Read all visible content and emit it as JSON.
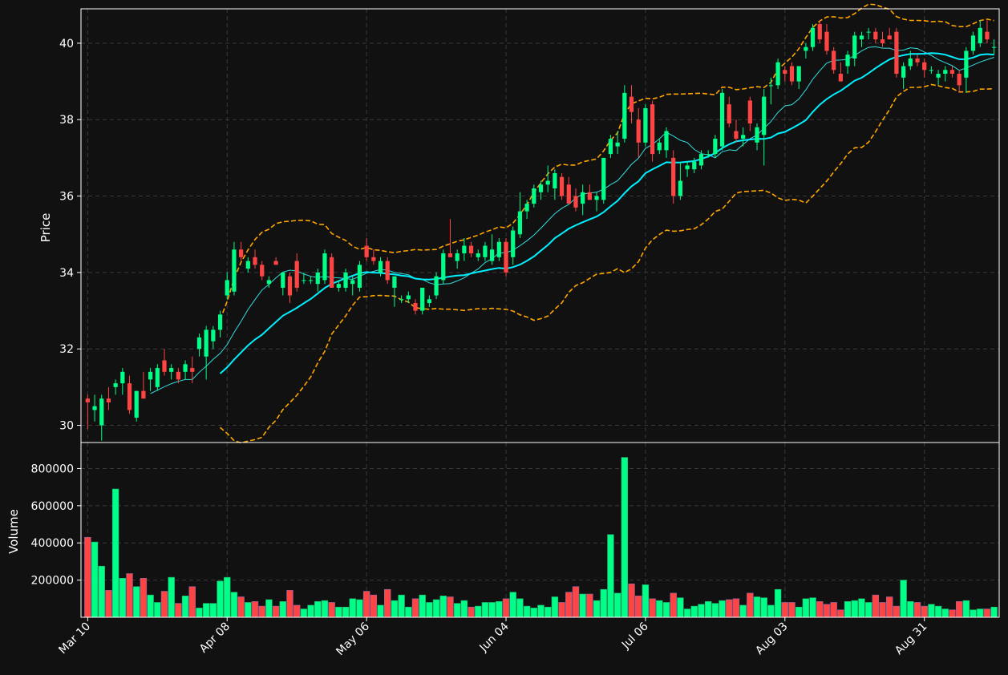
{
  "chart_data": {
    "type": "candlestick",
    "title": "",
    "colors": {
      "background": "#111111",
      "up": "#00ff88",
      "down": "#ff4444",
      "ma_fast": "#33dddd",
      "ma_slow": "#00f0ff",
      "bands": "#ffa500",
      "grid": "#3a3a3a",
      "axis": "#ffffff"
    },
    "grid": true,
    "price_panel": {
      "ylabel": "Price",
      "ylim": [
        29.55,
        40.9
      ],
      "yticks": [
        30,
        32,
        34,
        36,
        38,
        40
      ]
    },
    "volume_panel": {
      "ylabel": "Volume",
      "ylim": [
        0,
        940000
      ],
      "yticks": [
        200000,
        400000,
        600000,
        800000
      ]
    },
    "x_tick_labels": [
      {
        "index": 0,
        "label": "Mar 10"
      },
      {
        "index": 20,
        "label": "Apr 08"
      },
      {
        "index": 40,
        "label": "May 06"
      },
      {
        "index": 60,
        "label": "Jun 04"
      },
      {
        "index": 80,
        "label": "Jul 06"
      },
      {
        "index": 100,
        "label": "Aug 03"
      },
      {
        "index": 120,
        "label": "Aug 31"
      }
    ],
    "candles": [
      [
        30.7,
        30.8,
        29.9,
        30.6,
        430000
      ],
      [
        30.4,
        30.8,
        30.1,
        30.5,
        405000
      ],
      [
        30.0,
        30.8,
        29.6,
        30.7,
        275000
      ],
      [
        30.7,
        31.0,
        30.4,
        30.6,
        145000
      ],
      [
        31.0,
        31.2,
        30.8,
        31.1,
        690000
      ],
      [
        31.1,
        31.5,
        30.8,
        31.4,
        210000
      ],
      [
        31.1,
        31.3,
        30.3,
        30.4,
        235000
      ],
      [
        30.2,
        30.9,
        30.1,
        30.9,
        165000
      ],
      [
        30.9,
        31.4,
        30.7,
        30.7,
        210000
      ],
      [
        31.2,
        31.5,
        30.9,
        31.4,
        120000
      ],
      [
        31.0,
        31.6,
        30.9,
        31.5,
        80000
      ],
      [
        31.7,
        32.0,
        31.3,
        31.4,
        140000
      ],
      [
        31.4,
        31.6,
        31.2,
        31.5,
        215000
      ],
      [
        31.4,
        31.5,
        31.1,
        31.2,
        75000
      ],
      [
        31.4,
        31.7,
        31.2,
        31.6,
        115000
      ],
      [
        31.5,
        31.8,
        31.1,
        31.4,
        165000
      ],
      [
        32.0,
        32.4,
        31.8,
        32.3,
        50000
      ],
      [
        31.8,
        32.6,
        31.2,
        32.5,
        75000
      ],
      [
        32.2,
        32.6,
        32.0,
        32.5,
        75000
      ],
      [
        32.5,
        33.0,
        32.3,
        32.9,
        195000
      ],
      [
        33.4,
        34.0,
        33.3,
        33.8,
        215000
      ],
      [
        33.5,
        34.8,
        33.4,
        34.6,
        135000
      ],
      [
        34.6,
        34.8,
        34.3,
        34.4,
        110000
      ],
      [
        34.1,
        34.4,
        34.0,
        34.3,
        80000
      ],
      [
        34.4,
        34.6,
        34.1,
        34.2,
        85000
      ],
      [
        34.2,
        34.3,
        33.8,
        33.9,
        60000
      ],
      [
        33.7,
        33.9,
        33.6,
        33.8,
        95000
      ],
      [
        34.3,
        34.4,
        34.2,
        34.2,
        60000
      ],
      [
        33.6,
        34.0,
        33.4,
        34.0,
        85000
      ],
      [
        33.9,
        34.0,
        33.2,
        33.4,
        145000
      ],
      [
        34.3,
        34.5,
        33.5,
        33.6,
        65000
      ],
      [
        33.8,
        34.0,
        33.7,
        33.8,
        45000
      ],
      [
        33.8,
        33.9,
        33.7,
        33.8,
        65000
      ],
      [
        33.7,
        34.1,
        33.5,
        34.0,
        85000
      ],
      [
        33.8,
        34.6,
        33.7,
        34.5,
        90000
      ],
      [
        34.4,
        34.5,
        33.6,
        33.6,
        80000
      ],
      [
        33.6,
        33.8,
        33.5,
        33.7,
        55000
      ],
      [
        33.6,
        34.1,
        33.5,
        34.0,
        55000
      ],
      [
        33.7,
        33.9,
        33.4,
        33.8,
        100000
      ],
      [
        33.6,
        34.3,
        33.5,
        34.2,
        95000
      ],
      [
        34.7,
        34.9,
        34.3,
        34.4,
        140000
      ],
      [
        34.4,
        34.6,
        34.2,
        34.3,
        120000
      ],
      [
        34.0,
        34.4,
        33.9,
        34.3,
        65000
      ],
      [
        34.3,
        34.4,
        33.7,
        33.8,
        150000
      ],
      [
        33.6,
        33.9,
        33.1,
        33.9,
        90000
      ],
      [
        33.3,
        33.4,
        33.2,
        33.3,
        120000
      ],
      [
        33.3,
        33.5,
        33.2,
        33.4,
        55000
      ],
      [
        33.2,
        33.3,
        32.9,
        33.0,
        100000
      ],
      [
        33.0,
        33.6,
        32.9,
        33.6,
        120000
      ],
      [
        33.2,
        33.4,
        33.1,
        33.3,
        80000
      ],
      [
        33.4,
        34.0,
        33.3,
        33.9,
        95000
      ],
      [
        33.8,
        34.6,
        33.7,
        34.5,
        115000
      ],
      [
        34.5,
        35.4,
        34.4,
        34.4,
        110000
      ],
      [
        34.3,
        34.6,
        34.1,
        34.5,
        75000
      ],
      [
        34.5,
        34.9,
        34.3,
        34.7,
        90000
      ],
      [
        34.7,
        34.8,
        34.4,
        34.5,
        55000
      ],
      [
        34.4,
        34.6,
        34.3,
        34.5,
        60000
      ],
      [
        34.4,
        34.8,
        34.3,
        34.7,
        80000
      ],
      [
        34.3,
        35.0,
        34.2,
        34.6,
        80000
      ],
      [
        34.4,
        34.9,
        34.3,
        34.8,
        85000
      ],
      [
        34.8,
        34.9,
        33.9,
        34.0,
        100000
      ],
      [
        34.4,
        35.2,
        34.2,
        35.1,
        135000
      ],
      [
        35.0,
        36.1,
        34.9,
        35.6,
        100000
      ],
      [
        35.6,
        35.9,
        35.4,
        35.8,
        60000
      ],
      [
        35.8,
        36.3,
        35.7,
        36.2,
        50000
      ],
      [
        36.1,
        36.4,
        35.9,
        36.3,
        65000
      ],
      [
        36.3,
        36.8,
        36.1,
        36.4,
        55000
      ],
      [
        36.2,
        36.7,
        35.9,
        36.6,
        110000
      ],
      [
        36.5,
        36.6,
        35.9,
        36.0,
        80000
      ],
      [
        36.3,
        36.5,
        35.8,
        35.8,
        135000
      ],
      [
        36.0,
        36.2,
        35.6,
        35.7,
        165000
      ],
      [
        35.8,
        36.3,
        35.5,
        36.1,
        125000
      ],
      [
        36.1,
        36.3,
        35.9,
        35.9,
        125000
      ],
      [
        35.9,
        36.1,
        35.6,
        36.0,
        90000
      ],
      [
        35.9,
        37.0,
        35.8,
        37.0,
        150000
      ],
      [
        37.1,
        37.6,
        37.0,
        37.5,
        445000
      ],
      [
        37.3,
        37.7,
        37.1,
        37.4,
        130000
      ],
      [
        37.5,
        38.9,
        37.4,
        38.7,
        860000
      ],
      [
        38.6,
        38.9,
        37.9,
        38.2,
        180000
      ],
      [
        38.0,
        38.3,
        37.0,
        37.4,
        115000
      ],
      [
        37.4,
        38.4,
        37.3,
        38.3,
        175000
      ],
      [
        38.4,
        38.5,
        36.9,
        37.1,
        100000
      ],
      [
        37.2,
        37.5,
        37.1,
        37.4,
        90000
      ],
      [
        37.2,
        37.8,
        37.0,
        37.7,
        80000
      ],
      [
        37.0,
        37.2,
        35.8,
        36.0,
        130000
      ],
      [
        36.0,
        36.9,
        35.9,
        36.4,
        105000
      ],
      [
        36.7,
        36.9,
        36.5,
        36.8,
        45000
      ],
      [
        36.7,
        37.0,
        36.6,
        36.9,
        60000
      ],
      [
        36.8,
        37.2,
        36.7,
        37.1,
        70000
      ],
      [
        37.1,
        37.2,
        37.0,
        37.1,
        85000
      ],
      [
        37.1,
        37.6,
        37.0,
        37.5,
        75000
      ],
      [
        37.3,
        38.8,
        37.2,
        38.7,
        90000
      ],
      [
        38.4,
        38.6,
        37.8,
        37.9,
        95000
      ],
      [
        37.7,
        38.0,
        37.4,
        37.5,
        100000
      ],
      [
        37.5,
        37.8,
        37.3,
        37.6,
        65000
      ],
      [
        38.5,
        38.6,
        37.7,
        37.9,
        130000
      ],
      [
        37.4,
        37.9,
        37.2,
        37.8,
        110000
      ],
      [
        37.6,
        38.8,
        36.8,
        38.6,
        105000
      ],
      [
        38.9,
        39.1,
        38.4,
        38.9,
        65000
      ],
      [
        38.9,
        39.6,
        38.8,
        39.5,
        150000
      ],
      [
        39.3,
        39.4,
        39.0,
        39.2,
        80000
      ],
      [
        39.4,
        39.5,
        38.9,
        39.0,
        80000
      ],
      [
        39.0,
        39.4,
        38.8,
        39.4,
        55000
      ],
      [
        39.8,
        40.0,
        39.6,
        39.9,
        100000
      ],
      [
        39.9,
        40.5,
        39.8,
        40.4,
        105000
      ],
      [
        40.5,
        40.6,
        40.0,
        40.1,
        85000
      ],
      [
        40.3,
        40.5,
        39.7,
        39.8,
        70000
      ],
      [
        39.8,
        39.9,
        39.2,
        39.3,
        80000
      ],
      [
        39.2,
        39.5,
        39.0,
        39.0,
        40000
      ],
      [
        39.4,
        39.8,
        39.2,
        39.7,
        85000
      ],
      [
        39.6,
        40.3,
        39.4,
        40.2,
        90000
      ],
      [
        40.1,
        40.3,
        39.9,
        40.2,
        100000
      ],
      [
        40.3,
        40.4,
        40.1,
        40.3,
        80000
      ],
      [
        40.3,
        40.4,
        40.0,
        40.1,
        120000
      ],
      [
        40.1,
        40.3,
        39.9,
        40.0,
        80000
      ],
      [
        40.2,
        40.4,
        40.1,
        40.1,
        110000
      ],
      [
        40.3,
        40.4,
        39.1,
        39.2,
        60000
      ],
      [
        39.1,
        39.5,
        38.8,
        39.4,
        200000
      ],
      [
        39.4,
        39.8,
        39.3,
        39.6,
        85000
      ],
      [
        39.6,
        39.7,
        39.4,
        39.5,
        80000
      ],
      [
        39.5,
        39.6,
        39.1,
        39.3,
        60000
      ],
      [
        39.3,
        39.4,
        39.2,
        39.3,
        70000
      ],
      [
        39.1,
        39.3,
        38.9,
        39.2,
        60000
      ],
      [
        39.2,
        39.4,
        39.0,
        39.3,
        45000
      ],
      [
        39.3,
        39.4,
        39.1,
        39.2,
        40000
      ],
      [
        39.2,
        39.3,
        38.7,
        38.9,
        85000
      ],
      [
        39.1,
        39.9,
        38.7,
        39.8,
        90000
      ],
      [
        39.8,
        40.3,
        39.7,
        40.2,
        40000
      ],
      [
        40.0,
        40.6,
        39.9,
        40.4,
        45000
      ],
      [
        40.3,
        40.6,
        40.0,
        40.1,
        45000
      ],
      [
        39.9,
        40.1,
        39.7,
        39.9,
        55000
      ]
    ]
  }
}
